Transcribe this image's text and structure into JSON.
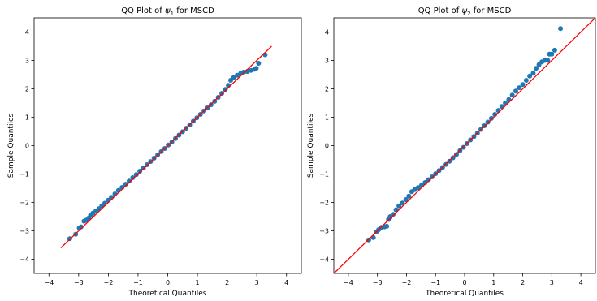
{
  "chart_data": [
    {
      "type": "scatter",
      "title_prefix": "QQ Plot of ",
      "title_symbol": "ψ",
      "title_subscript": "1",
      "title_suffix": " for MSCD",
      "xlabel": "Theoretical Quantiles",
      "ylabel": "Sample Quantiles",
      "xlim": [
        -4.5,
        4.5
      ],
      "ylim": [
        -4.5,
        4.5
      ],
      "xticks": [
        -4,
        -3,
        -2,
        -1,
        0,
        1,
        2,
        3,
        4
      ],
      "yticks": [
        -4,
        -3,
        -2,
        -1,
        0,
        1,
        2,
        3,
        4
      ],
      "grid": false,
      "point_color": "#1f77b4",
      "line_color": "#ff0000",
      "reference_line": {
        "x": [
          -3.6,
          3.5
        ],
        "y": [
          -3.6,
          3.5
        ]
      },
      "points": [
        [
          -3.3,
          -3.28
        ],
        [
          -3.1,
          -3.12
        ],
        [
          -2.98,
          -2.9
        ],
        [
          -2.92,
          -2.86
        ],
        [
          -2.82,
          -2.66
        ],
        [
          -2.74,
          -2.62
        ],
        [
          -2.66,
          -2.55
        ],
        [
          -2.6,
          -2.45
        ],
        [
          -2.52,
          -2.38
        ],
        [
          -2.42,
          -2.3
        ],
        [
          -2.32,
          -2.22
        ],
        [
          -2.22,
          -2.12
        ],
        [
          -2.12,
          -2.03
        ],
        [
          -2.0,
          -1.92
        ],
        [
          -1.9,
          -1.82
        ],
        [
          -1.78,
          -1.7
        ],
        [
          -1.66,
          -1.58
        ],
        [
          -1.54,
          -1.47
        ],
        [
          -1.42,
          -1.36
        ],
        [
          -1.3,
          -1.25
        ],
        [
          -1.18,
          -1.13
        ],
        [
          -1.06,
          -1.02
        ],
        [
          -0.94,
          -0.9
        ],
        [
          -0.82,
          -0.79
        ],
        [
          -0.7,
          -0.67
        ],
        [
          -0.58,
          -0.56
        ],
        [
          -0.46,
          -0.44
        ],
        [
          -0.34,
          -0.33
        ],
        [
          -0.22,
          -0.21
        ],
        [
          -0.1,
          -0.1
        ],
        [
          0.02,
          0.02
        ],
        [
          0.14,
          0.13
        ],
        [
          0.26,
          0.25
        ],
        [
          0.38,
          0.37
        ],
        [
          0.5,
          0.49
        ],
        [
          0.62,
          0.61
        ],
        [
          0.74,
          0.73
        ],
        [
          0.86,
          0.86
        ],
        [
          0.98,
          0.98
        ],
        [
          1.1,
          1.1
        ],
        [
          1.22,
          1.22
        ],
        [
          1.34,
          1.33
        ],
        [
          1.46,
          1.44
        ],
        [
          1.58,
          1.56
        ],
        [
          1.7,
          1.7
        ],
        [
          1.82,
          1.84
        ],
        [
          1.94,
          1.98
        ],
        [
          2.04,
          2.12
        ],
        [
          2.12,
          2.3
        ],
        [
          2.22,
          2.4
        ],
        [
          2.34,
          2.48
        ],
        [
          2.46,
          2.55
        ],
        [
          2.56,
          2.59
        ],
        [
          2.68,
          2.61
        ],
        [
          2.8,
          2.65
        ],
        [
          2.92,
          2.69
        ],
        [
          2.98,
          2.72
        ],
        [
          3.06,
          2.9
        ],
        [
          3.28,
          3.2
        ]
      ]
    },
    {
      "type": "scatter",
      "title_prefix": "QQ Plot of ",
      "title_symbol": "ψ",
      "title_subscript": "2",
      "title_suffix": " for MSCD",
      "xlabel": "Theoretical Quantiles",
      "ylabel": "Sample Quantiles",
      "xlim": [
        -4.5,
        4.5
      ],
      "ylim": [
        -4.5,
        4.5
      ],
      "xticks": [
        -4,
        -3,
        -2,
        -1,
        0,
        1,
        2,
        3,
        4
      ],
      "yticks": [
        -4,
        -3,
        -2,
        -1,
        0,
        1,
        2,
        3,
        4
      ],
      "grid": false,
      "point_color": "#1f77b4",
      "line_color": "#ff0000",
      "reference_line": {
        "x": [
          -4.5,
          4.5
        ],
        "y": [
          -4.5,
          4.5
        ]
      },
      "points": [
        [
          -3.3,
          -3.32
        ],
        [
          -3.14,
          -3.24
        ],
        [
          -3.04,
          -3.04
        ],
        [
          -2.96,
          -2.96
        ],
        [
          -2.86,
          -2.88
        ],
        [
          -2.76,
          -2.86
        ],
        [
          -2.68,
          -2.84
        ],
        [
          -2.62,
          -2.6
        ],
        [
          -2.56,
          -2.5
        ],
        [
          -2.46,
          -2.42
        ],
        [
          -2.36,
          -2.26
        ],
        [
          -2.26,
          -2.12
        ],
        [
          -2.14,
          -2.02
        ],
        [
          -2.02,
          -1.9
        ],
        [
          -1.92,
          -1.78
        ],
        [
          -1.82,
          -1.62
        ],
        [
          -1.72,
          -1.55
        ],
        [
          -1.6,
          -1.48
        ],
        [
          -1.48,
          -1.39
        ],
        [
          -1.36,
          -1.3
        ],
        [
          -1.24,
          -1.2
        ],
        [
          -1.12,
          -1.1
        ],
        [
          -1.0,
          -0.99
        ],
        [
          -0.88,
          -0.88
        ],
        [
          -0.76,
          -0.77
        ],
        [
          -0.64,
          -0.66
        ],
        [
          -0.52,
          -0.55
        ],
        [
          -0.4,
          -0.43
        ],
        [
          -0.28,
          -0.31
        ],
        [
          -0.16,
          -0.18
        ],
        [
          -0.04,
          -0.06
        ],
        [
          0.08,
          0.07
        ],
        [
          0.2,
          0.2
        ],
        [
          0.32,
          0.32
        ],
        [
          0.44,
          0.44
        ],
        [
          0.56,
          0.57
        ],
        [
          0.68,
          0.7
        ],
        [
          0.8,
          0.83
        ],
        [
          0.92,
          0.96
        ],
        [
          1.04,
          1.1
        ],
        [
          1.16,
          1.24
        ],
        [
          1.28,
          1.38
        ],
        [
          1.4,
          1.5
        ],
        [
          1.52,
          1.62
        ],
        [
          1.64,
          1.78
        ],
        [
          1.76,
          1.92
        ],
        [
          1.88,
          2.04
        ],
        [
          2.0,
          2.15
        ],
        [
          2.12,
          2.3
        ],
        [
          2.24,
          2.45
        ],
        [
          2.36,
          2.55
        ],
        [
          2.46,
          2.72
        ],
        [
          2.56,
          2.85
        ],
        [
          2.66,
          2.95
        ],
        [
          2.76,
          3.0
        ],
        [
          2.86,
          3.0
        ],
        [
          2.92,
          3.22
        ],
        [
          3.0,
          3.22
        ],
        [
          3.1,
          3.36
        ],
        [
          3.3,
          4.12
        ]
      ]
    }
  ]
}
